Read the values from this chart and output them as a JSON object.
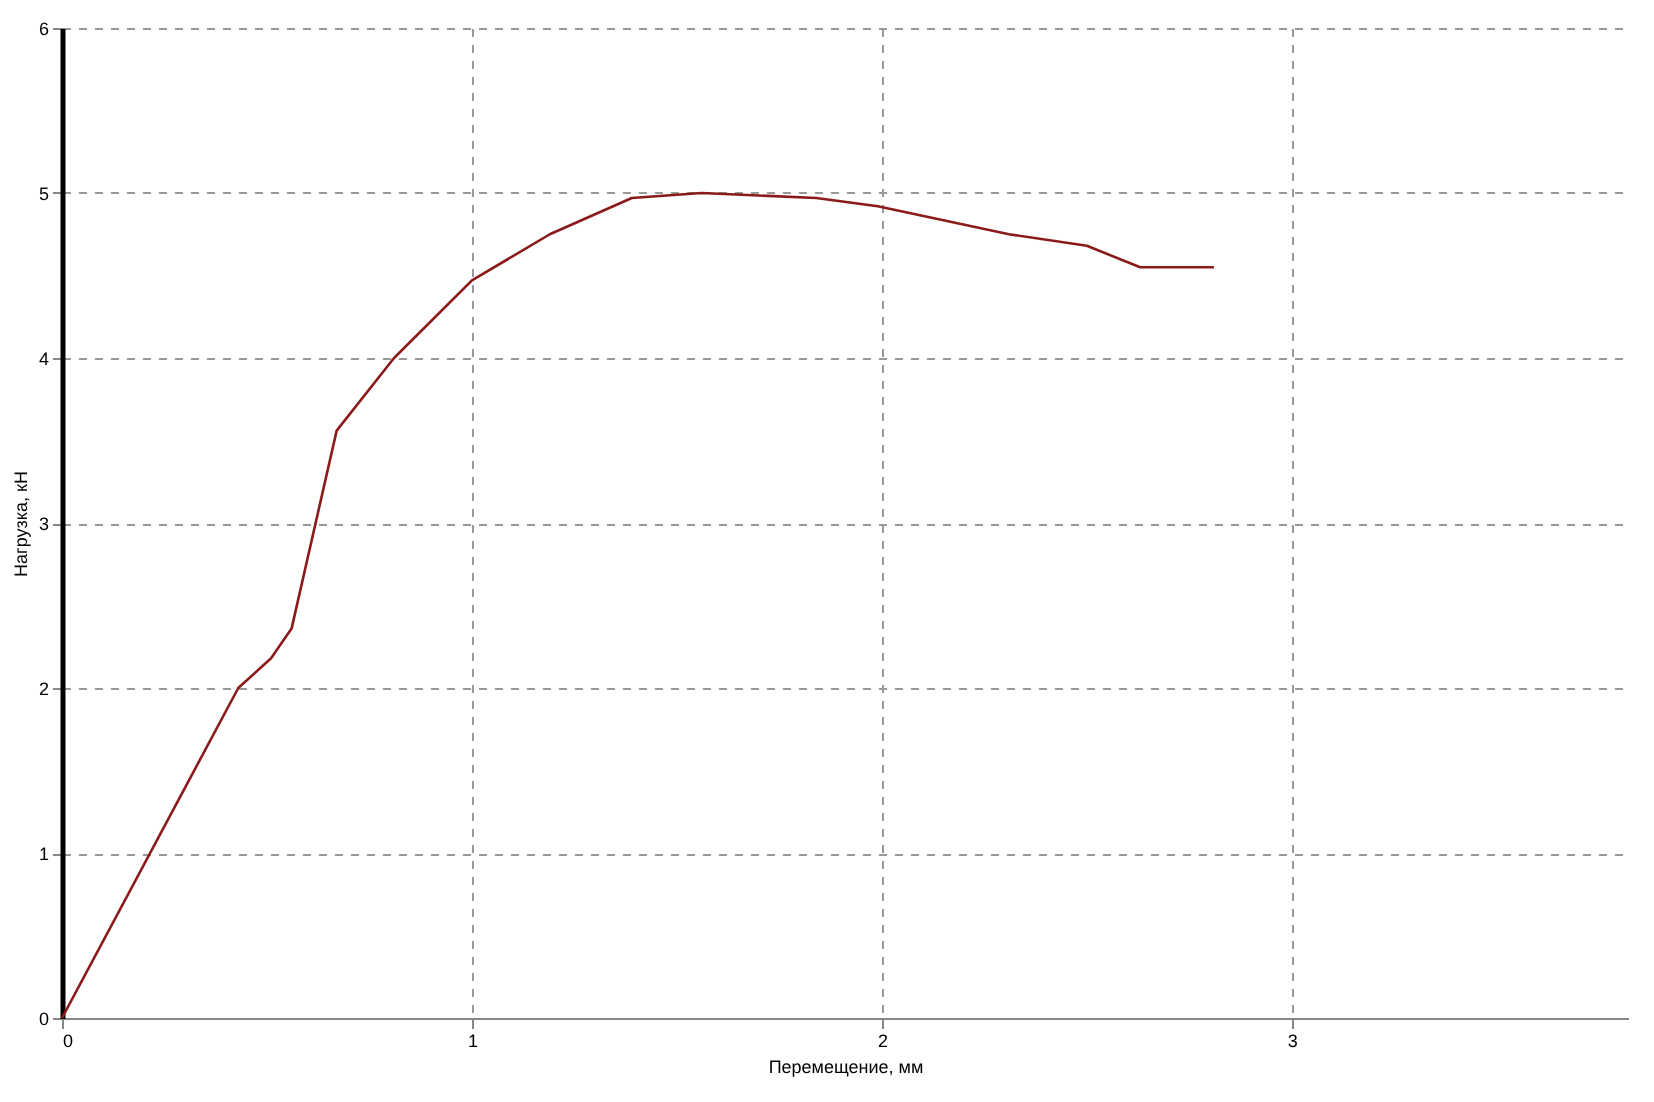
{
  "chart_data": {
    "type": "line",
    "xlabel": "Перемещение, мм",
    "ylabel": "Нагрузка, кН",
    "x": [
      0,
      0.43,
      0.51,
      0.56,
      0.67,
      0.81,
      1.0,
      1.19,
      1.39,
      1.56,
      1.84,
      1.99,
      2.31,
      2.5,
      2.63,
      2.81
    ],
    "series": [
      {
        "color": "#8b1a1a",
        "values": [
          0,
          2.0,
          2.18,
          2.36,
          3.56,
          4.0,
          4.47,
          4.75,
          4.97,
          5.0,
          4.97,
          4.92,
          4.75,
          4.68,
          4.55,
          4.55
        ]
      }
    ],
    "xlim": [
      0,
      3.82
    ],
    "xticks": [
      0,
      1,
      2,
      3
    ],
    "ylim": [
      0,
      6
    ],
    "yticks": [
      0,
      1,
      2,
      3,
      4,
      5,
      6
    ],
    "grid": true,
    "marker": "none",
    "line_style": "solid"
  }
}
